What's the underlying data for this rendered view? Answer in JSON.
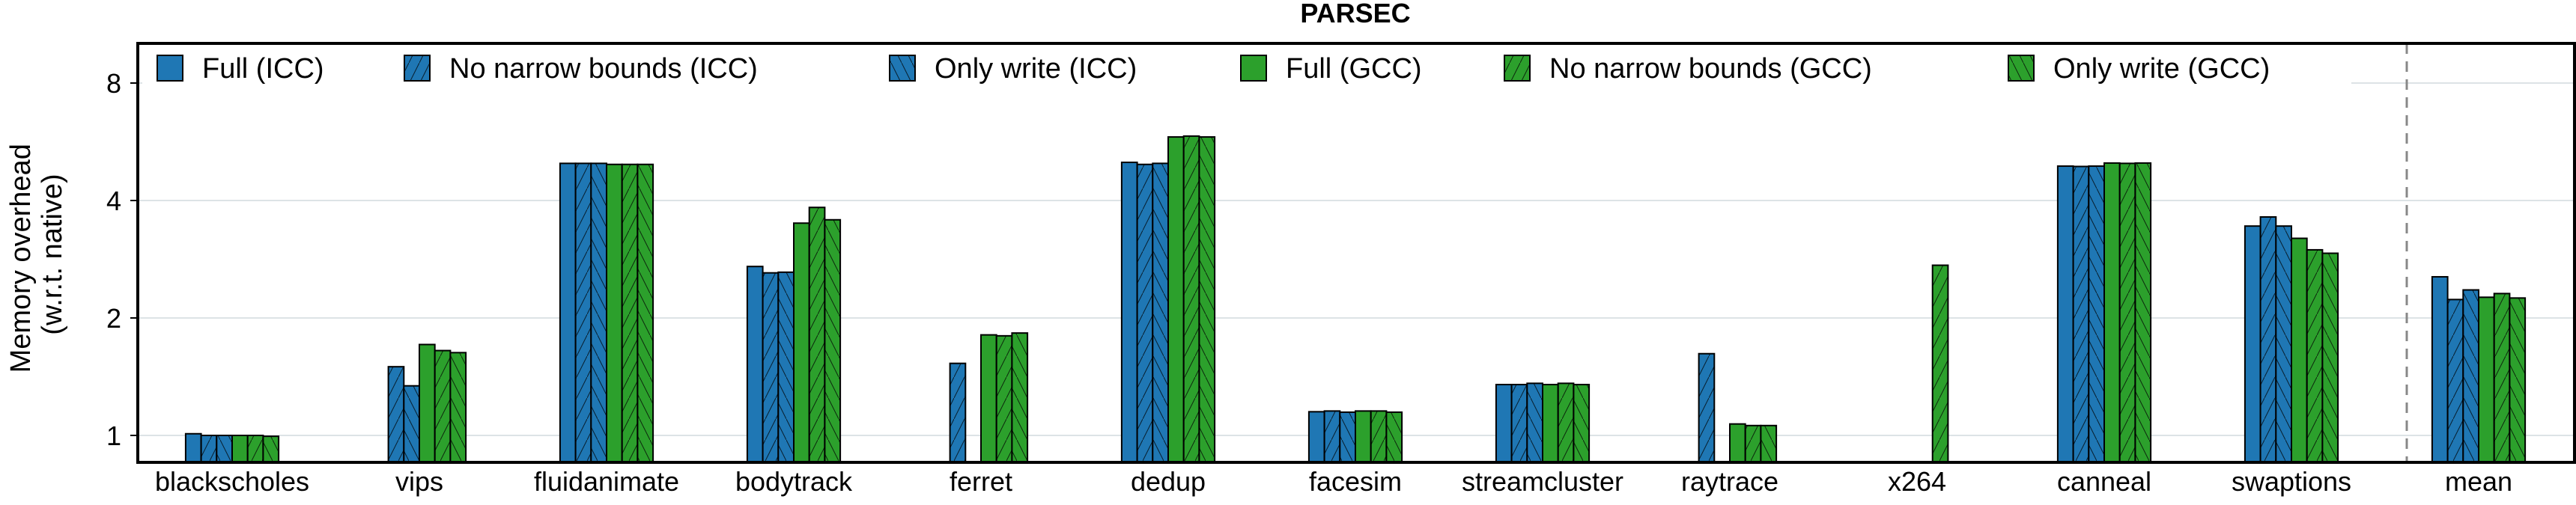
{
  "chart_data": {
    "type": "bar",
    "title": "PARSEC",
    "xlabel": "",
    "ylabel": "Memory overhead\n(w.r.t. native)",
    "ylabel_lines": [
      "Memory overhead",
      "(w.r.t. native)"
    ],
    "yscale": "log2",
    "ylim": [
      0.85,
      10
    ],
    "yticks": [
      1,
      2,
      4,
      8
    ],
    "ytick_labels": [
      "1",
      "2",
      "4",
      "8"
    ],
    "grid": true,
    "legend_position": "top",
    "separator_before": "mean",
    "categories": [
      "blackscholes",
      "vips",
      "fluidanimate",
      "bodytrack",
      "ferret",
      "dedup",
      "facesim",
      "streamcluster",
      "raytrace",
      "x264",
      "canneal",
      "swaptions",
      "mean"
    ],
    "series": [
      {
        "name": "Full (ICC)",
        "color": "#1f77b4",
        "pattern": "solid",
        "values": [
          1.01,
          null,
          4.98,
          2.71,
          null,
          5.01,
          1.15,
          1.35,
          null,
          null,
          4.9,
          3.44,
          2.55
        ]
      },
      {
        "name": "No narrow bounds (ICC)",
        "color": "#1f77b4",
        "pattern": "forward-hatch",
        "values": [
          1.0,
          1.5,
          4.98,
          2.61,
          1.53,
          4.95,
          1.155,
          1.35,
          1.62,
          null,
          4.89,
          3.63,
          2.23
        ]
      },
      {
        "name": "Only write (ICC)",
        "color": "#1f77b4",
        "pattern": "back-hatch",
        "values": [
          1.0,
          1.34,
          4.98,
          2.62,
          null,
          4.98,
          1.147,
          1.36,
          null,
          null,
          4.9,
          3.44,
          2.36
        ]
      },
      {
        "name": "Full (GCC)",
        "color": "#2ca02c",
        "pattern": "solid",
        "values": [
          1.0,
          1.71,
          4.95,
          3.5,
          1.81,
          5.82,
          1.155,
          1.35,
          1.07,
          null,
          4.99,
          3.2,
          2.26
        ]
      },
      {
        "name": "No narrow bounds (GCC)",
        "color": "#2ca02c",
        "pattern": "forward-hatch",
        "values": [
          1.0,
          1.65,
          4.95,
          3.84,
          1.8,
          5.85,
          1.155,
          1.36,
          1.06,
          2.73,
          4.98,
          2.99,
          2.31
        ]
      },
      {
        "name": "Only write (GCC)",
        "color": "#2ca02c",
        "pattern": "back-hatch",
        "values": [
          0.995,
          1.63,
          4.95,
          3.57,
          1.83,
          5.82,
          1.147,
          1.35,
          1.06,
          null,
          4.99,
          2.93,
          2.25
        ]
      }
    ]
  }
}
